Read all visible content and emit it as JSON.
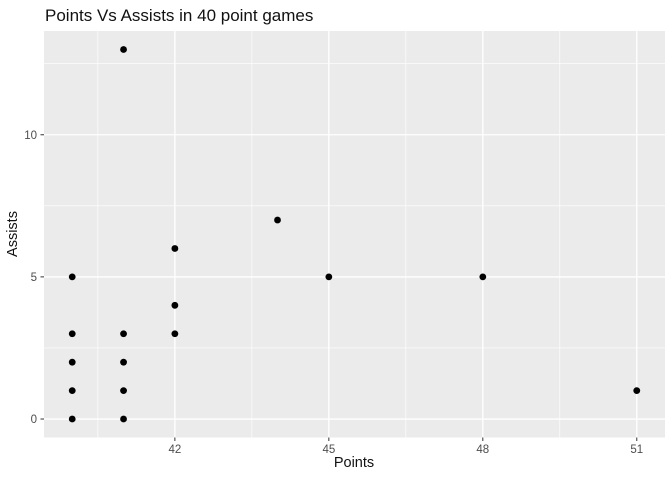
{
  "chart_data": {
    "type": "scatter",
    "title": "Points Vs Assists in 40 point games",
    "xlabel": "Points",
    "ylabel": "Assists",
    "points": [
      [
        40,
        0
      ],
      [
        40,
        1
      ],
      [
        40,
        2
      ],
      [
        40,
        3
      ],
      [
        40,
        5
      ],
      [
        41,
        0
      ],
      [
        41,
        1
      ],
      [
        41,
        2
      ],
      [
        41,
        3
      ],
      [
        41,
        13
      ],
      [
        42,
        3
      ],
      [
        42,
        4
      ],
      [
        42,
        6
      ],
      [
        44,
        7
      ],
      [
        45,
        5
      ],
      [
        48,
        5
      ],
      [
        51,
        1
      ]
    ],
    "x_ticks": [
      42,
      45,
      48,
      51
    ],
    "y_ticks": [
      0,
      5,
      10
    ],
    "x_minor_gridlines": [
      40.5,
      43.5,
      46.5,
      49.5
    ],
    "y_minor_gridlines": [
      2.5,
      7.5,
      12.5
    ],
    "xlim": [
      39.45,
      51.55
    ],
    "ylim": [
      -0.65,
      13.65
    ],
    "grid": "major+minor",
    "legend": "none",
    "colors": {
      "panel_bg": "#EBEBEB",
      "gridline": "#FFFFFF",
      "point": "#000000",
      "tick_label": "#4D4D4D",
      "tick_mark": "#333333",
      "title": "#111111"
    }
  }
}
